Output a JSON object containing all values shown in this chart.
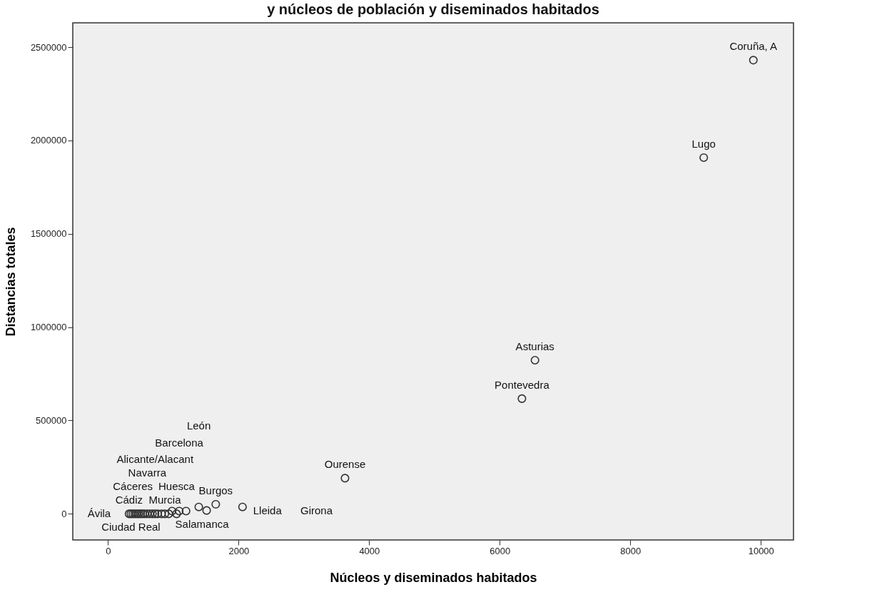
{
  "chart_data": {
    "type": "scatter",
    "title": "y núcleos de población y diseminados habitados",
    "xlabel": "Núcleos y diseminados habitados",
    "ylabel": "Distancias totales",
    "x": [
      322,
      350,
      380,
      410,
      440,
      470,
      500,
      530,
      560,
      600,
      640,
      680,
      720,
      760,
      820,
      870,
      930,
      980,
      1050,
      1090,
      1195,
      1390,
      1510,
      1650,
      2060,
      3630,
      6340,
      6540,
      9125,
      9885
    ],
    "series": [
      {
        "color": "#333333",
        "values": [
          0,
          0,
          0,
          0,
          0,
          0,
          0,
          0,
          0,
          0,
          0,
          0,
          0,
          0,
          0,
          0,
          0,
          15000,
          0,
          15000,
          15000,
          37000,
          18000,
          51000,
          37000,
          191000,
          617000,
          823000,
          1908000,
          2430000
        ]
      }
    ],
    "value_labels": [
      "Cádiz",
      "Ciudad Real",
      "Cáceres",
      "Ávila",
      null,
      null,
      null,
      null,
      null,
      "Navarra",
      null,
      null,
      "Alicante/Alacant",
      null,
      null,
      "Murcia",
      null,
      "Salamanca",
      "Huesca",
      "Barcelona",
      "Lleida",
      "León",
      "Girona",
      "Burgos",
      null,
      "Ourense",
      "Pontevedra",
      "Asturias",
      "Lugo",
      "Coruña, A"
    ],
    "xlim": [
      -540,
      10500
    ],
    "ylim": [
      -140000,
      2630000
    ],
    "xticks": [
      0,
      2000,
      4000,
      6000,
      8000,
      10000
    ],
    "yticks": [
      0,
      500000,
      1000000,
      1500000,
      2000000,
      2500000
    ],
    "grid": false,
    "marker": "circle"
  }
}
